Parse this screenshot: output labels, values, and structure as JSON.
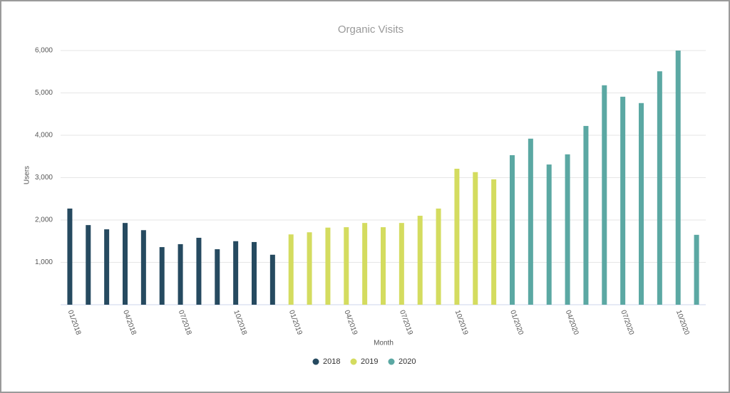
{
  "chart_data": {
    "type": "bar",
    "title": "Organic Visits",
    "x_label": "Month",
    "y_label": "Users",
    "categories": [
      "01/2018",
      null,
      null,
      "04/2018",
      null,
      null,
      "07/2018",
      null,
      null,
      "10/2018",
      null,
      null,
      "01/2019",
      null,
      null,
      "04/2019",
      null,
      null,
      "07/2019",
      null,
      null,
      "10/2019",
      null,
      null,
      "01/2020",
      null,
      null,
      "04/2020",
      null,
      null,
      "07/2020",
      null,
      null,
      "10/2020",
      null
    ],
    "series": [
      {
        "name": "2018",
        "color": "#264a60",
        "values": [
          2270,
          1880,
          1780,
          1930,
          1760,
          1360,
          1430,
          1580,
          1310,
          1500,
          1480,
          1180,
          null,
          null,
          null,
          null,
          null,
          null,
          null,
          null,
          null,
          null,
          null,
          null,
          null,
          null,
          null,
          null,
          null,
          null,
          null,
          null,
          null,
          null,
          null
        ]
      },
      {
        "name": "2019",
        "color": "#d4dc5f",
        "values": [
          null,
          null,
          null,
          null,
          null,
          null,
          null,
          null,
          null,
          null,
          null,
          null,
          1660,
          1710,
          1820,
          1830,
          1930,
          1830,
          1930,
          2100,
          2270,
          3210,
          3130,
          2960,
          null,
          null,
          null,
          null,
          null,
          null,
          null,
          null,
          null,
          null,
          null
        ]
      },
      {
        "name": "2020",
        "color": "#5ba8a3",
        "values": [
          null,
          null,
          null,
          null,
          null,
          null,
          null,
          null,
          null,
          null,
          null,
          null,
          null,
          null,
          null,
          null,
          null,
          null,
          null,
          null,
          null,
          null,
          null,
          null,
          3530,
          3920,
          3310,
          3550,
          4220,
          5180,
          4910,
          4760,
          5510,
          6000,
          1650
        ]
      }
    ],
    "ylim": [
      0,
      6000
    ],
    "yticks": [
      {
        "value": 1000,
        "label": "1,000"
      },
      {
        "value": 2000,
        "label": "2,000"
      },
      {
        "value": 3000,
        "label": "3,000"
      },
      {
        "value": 4000,
        "label": "4,000"
      },
      {
        "value": 5000,
        "label": "5,000"
      },
      {
        "value": 6000,
        "label": "6,000"
      }
    ],
    "grid": true,
    "legend": "bottom"
  }
}
